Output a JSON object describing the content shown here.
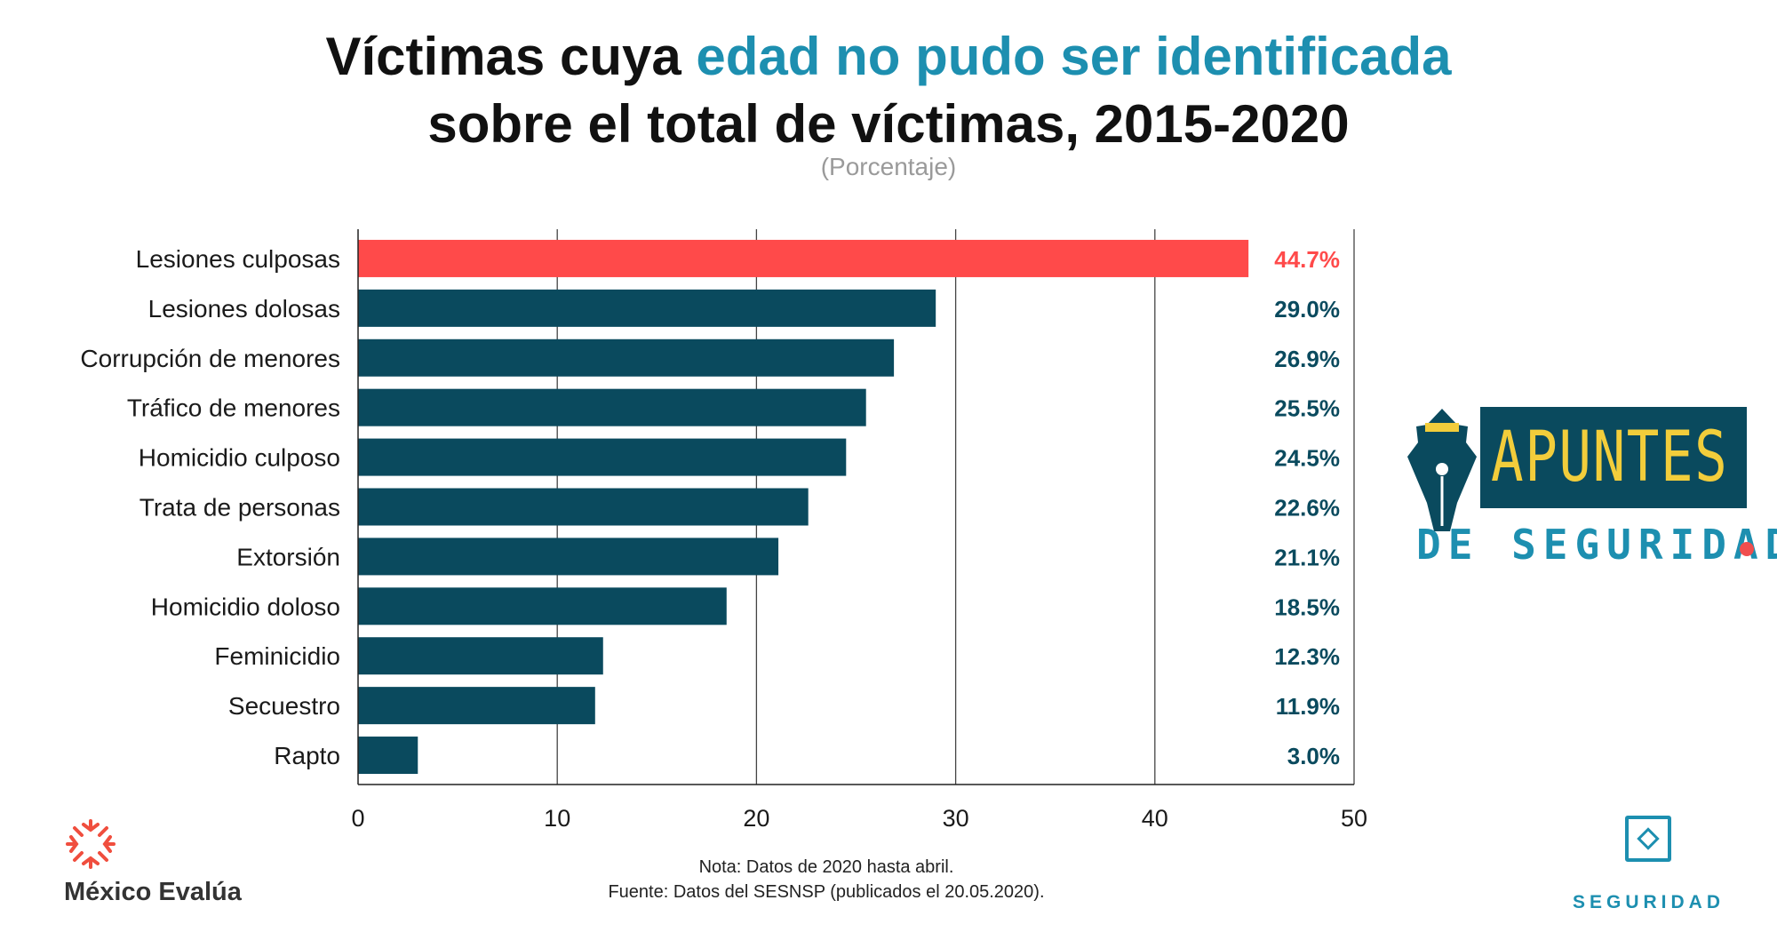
{
  "title": {
    "line1_prefix": "Víctimas cuya",
    "line1_highlight": "edad no pudo ser identificada",
    "line2": "sobre el total de víctimas, 2015-2020"
  },
  "subtitle": "(Porcentaje)",
  "notes": {
    "nota": "Nota: Datos de 2020 hasta abril.",
    "fuente": "Fuente: Datos del SESNSP (publicados el 20.05.2020)."
  },
  "brand": {
    "mexico_evalua": "México Evalúa",
    "apuntes_top": "APUNTES",
    "apuntes_bottom": "DE SEGURIDAD",
    "seguridad": "SEGURIDAD"
  },
  "colors": {
    "highlight_bar": "#ff4a4a",
    "bar": "#0a4a5e",
    "accent": "#1d8fb0"
  },
  "chart_data": {
    "type": "bar",
    "orientation": "horizontal",
    "categories": [
      "Lesiones culposas",
      "Lesiones dolosas",
      "Corrupción de menores",
      "Tráfico de menores",
      "Homicidio culposo",
      "Trata de personas",
      "Extorsión",
      "Homicidio doloso",
      "Feminicidio",
      "Secuestro",
      "Rapto"
    ],
    "values": [
      44.7,
      29.0,
      26.9,
      25.5,
      24.5,
      22.6,
      21.1,
      18.5,
      12.3,
      11.9,
      3.0
    ],
    "value_labels": [
      "44.7%",
      "29.0%",
      "26.9%",
      "25.5%",
      "24.5%",
      "22.6%",
      "21.1%",
      "18.5%",
      "12.3%",
      "11.9%",
      "3.0%"
    ],
    "highlight_index": 0,
    "xlim": [
      0,
      50
    ],
    "xticks": [
      0,
      10,
      20,
      30,
      40,
      50
    ],
    "grid": true,
    "xlabel": "",
    "ylabel": ""
  }
}
